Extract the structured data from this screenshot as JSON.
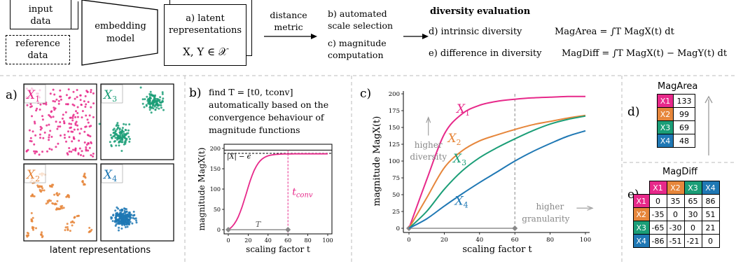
{
  "pipeline": {
    "input_data": [
      "input",
      "data"
    ],
    "reference_data": [
      "reference",
      "data"
    ],
    "embedding_model": [
      "embedding",
      "model"
    ],
    "latent_box": [
      "a) latent",
      "representations",
      "X, Y ∈ 𝒳"
    ],
    "distance_metric": [
      "distance",
      "metric"
    ],
    "step_b": [
      "b) automated",
      "scale selection"
    ],
    "step_c": [
      "c) magnitude",
      "computation"
    ],
    "evaluation_title": "diversity evaluation",
    "step_d": "d) intrinsic diversity",
    "formula_d": "MagArea = ∫T MagX(t) dt",
    "step_e": "e) difference in diversity",
    "formula_e": "MagDiff = ∫T MagX(t) − MagY(t) dt"
  },
  "panel_a": {
    "label": "a)",
    "caption": "latent representations",
    "sets": [
      {
        "name": "X1",
        "color": "#e7298a"
      },
      {
        "name": "X3",
        "color": "#1b9e77"
      },
      {
        "name": "X2",
        "color": "#e6863b"
      },
      {
        "name": "X4",
        "color": "#1f78b4"
      }
    ]
  },
  "panel_b": {
    "label": "b)",
    "text": [
      "find T = [t0, tconv]",
      "automatically based on the",
      "convergence behaviour of",
      "magnitude functions"
    ],
    "ylabel": "magnitude MagX(t)",
    "xlabel": "scaling factor t",
    "threshold_label": "|X| − ϵ",
    "tconv_label": "tconv",
    "T_label": "T",
    "xticks": [
      "0",
      "20",
      "40",
      "60",
      "80",
      "100"
    ],
    "yticks": [
      "0",
      "50",
      "100",
      "150",
      "200"
    ],
    "color": "#e7298a"
  },
  "panel_c": {
    "label": "c)",
    "ylabel": "magnitude MagX(t)",
    "xlabel": "scaling factor t",
    "xticks": [
      "0",
      "20",
      "40",
      "60",
      "80",
      "100"
    ],
    "yticks": [
      "0",
      "25",
      "50",
      "75",
      "100",
      "125",
      "150",
      "175",
      "200"
    ],
    "higher_diversity": [
      "higher",
      "diversity"
    ],
    "higher_granularity": [
      "higher",
      "granularity"
    ]
  },
  "chart_data": {
    "type": "line",
    "xlabel": "scaling factor t",
    "ylabel": "magnitude MagX(t)",
    "xlim": [
      0,
      100
    ],
    "ylim": [
      0,
      200
    ],
    "x": [
      0,
      10,
      20,
      30,
      40,
      50,
      60,
      70,
      80,
      90,
      100
    ],
    "series": [
      {
        "name": "X1",
        "color": "#e7298a",
        "values": [
          0,
          72,
          140,
          170,
          183,
          189,
          192,
          194,
          195,
          196,
          196
        ]
      },
      {
        "name": "X2",
        "color": "#e6863b",
        "values": [
          0,
          45,
          90,
          115,
          130,
          139,
          147,
          154,
          159,
          164,
          168
        ]
      },
      {
        "name": "X3",
        "color": "#1b9e77",
        "values": [
          0,
          25,
          58,
          85,
          105,
          120,
          133,
          145,
          155,
          162,
          167
        ]
      },
      {
        "name": "X4",
        "color": "#1f78b4",
        "values": [
          0,
          14,
          33,
          51,
          68,
          84,
          100,
          114,
          126,
          137,
          145
        ]
      }
    ]
  },
  "panel_d": {
    "label": "d)",
    "title": "MagArea",
    "rows": [
      {
        "name": "X1",
        "color": "#e7298a",
        "value": "133"
      },
      {
        "name": "X2",
        "color": "#e6863b",
        "value": "99"
      },
      {
        "name": "X3",
        "color": "#1b9e77",
        "value": "69"
      },
      {
        "name": "X4",
        "color": "#1f78b4",
        "value": "48"
      }
    ]
  },
  "panel_e": {
    "label": "e)",
    "title": "MagDiff",
    "headers": [
      {
        "name": "X1",
        "color": "#e7298a"
      },
      {
        "name": "X2",
        "color": "#e6863b"
      },
      {
        "name": "X3",
        "color": "#1b9e77"
      },
      {
        "name": "X4",
        "color": "#1f78b4"
      }
    ],
    "rows": [
      [
        "0",
        "35",
        "65",
        "86"
      ],
      [
        "-35",
        "0",
        "30",
        "51"
      ],
      [
        "-65",
        "-30",
        "0",
        "21"
      ],
      [
        "-86",
        "-51",
        "-21",
        "0"
      ]
    ]
  }
}
